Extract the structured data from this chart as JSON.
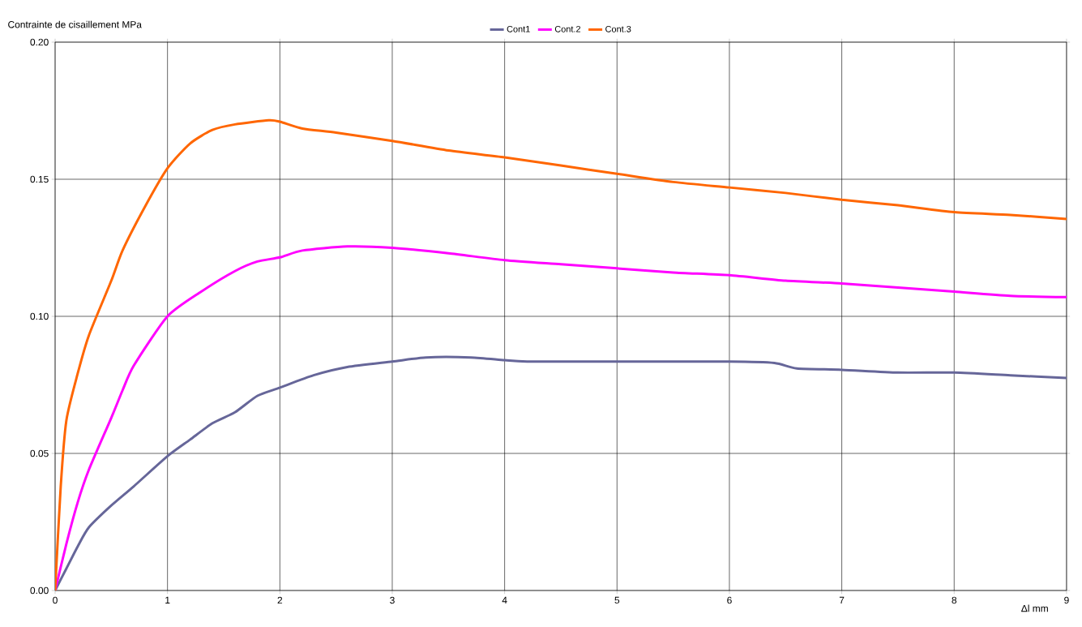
{
  "chart_data": {
    "type": "line",
    "ylabel": "Contrainte de cisaillement  MPa",
    "xlabel": "Δl  mm",
    "xlim": [
      0,
      9
    ],
    "ylim": [
      0,
      0.2
    ],
    "xticks": [
      0,
      1,
      2,
      3,
      4,
      5,
      6,
      7,
      8,
      9
    ],
    "yticks": [
      {
        "value": 0,
        "label": "0.00"
      },
      {
        "value": 0.05,
        "label": "0.05"
      },
      {
        "value": 0.1,
        "label": "0.10"
      },
      {
        "value": 0.15,
        "label": "0.15"
      },
      {
        "value": 0.2,
        "label": "0.20"
      }
    ],
    "grid": true,
    "legend": "top",
    "marker": "none",
    "line_style": "solid",
    "series": [
      {
        "name": "Cont1",
        "color": "#666699",
        "x": [
          0,
          0.1,
          0.2,
          0.3,
          0.5,
          0.7,
          1.0,
          1.2,
          1.4,
          1.6,
          1.8,
          2.0,
          2.3,
          2.6,
          3.0,
          3.3,
          3.7,
          4.0,
          4.2,
          5.0,
          6.0,
          6.4,
          6.6,
          7.0,
          7.5,
          8.0,
          8.5,
          9.0
        ],
        "values": [
          0,
          0.008,
          0.016,
          0.023,
          0.031,
          0.038,
          0.049,
          0.055,
          0.061,
          0.065,
          0.071,
          0.074,
          0.0785,
          0.0815,
          0.0835,
          0.085,
          0.085,
          0.084,
          0.0835,
          0.0835,
          0.0835,
          0.083,
          0.081,
          0.0805,
          0.0795,
          0.0795,
          0.0785,
          0.0775
        ]
      },
      {
        "name": "Cont.2",
        "color": "#ff00ff",
        "x": [
          0,
          0.1,
          0.2,
          0.3,
          0.5,
          0.6,
          0.7,
          1.0,
          1.3,
          1.6,
          1.8,
          2.0,
          2.2,
          2.6,
          3.0,
          3.5,
          4.0,
          4.5,
          5.0,
          5.5,
          6.0,
          6.5,
          7.0,
          7.5,
          8.0,
          8.5,
          9.0
        ],
        "values": [
          0,
          0.017,
          0.032,
          0.044,
          0.063,
          0.073,
          0.082,
          0.1,
          0.109,
          0.1165,
          0.12,
          0.1215,
          0.124,
          0.1255,
          0.125,
          0.123,
          0.1205,
          0.119,
          0.1175,
          0.116,
          0.115,
          0.113,
          0.112,
          0.1105,
          0.109,
          0.1075,
          0.107
        ]
      },
      {
        "name": "Cont.3",
        "color": "#ff6600",
        "x": [
          0,
          0.05,
          0.1,
          0.2,
          0.3,
          0.5,
          0.6,
          0.8,
          1.0,
          1.2,
          1.4,
          1.6,
          1.9,
          2.0,
          2.2,
          2.5,
          3.0,
          3.5,
          4.0,
          4.5,
          5.0,
          5.5,
          6.0,
          6.5,
          7.0,
          7.5,
          8.0,
          8.5,
          9.0
        ],
        "values": [
          0,
          0.038,
          0.062,
          0.079,
          0.093,
          0.113,
          0.124,
          0.14,
          0.154,
          0.163,
          0.168,
          0.17,
          0.1715,
          0.171,
          0.1685,
          0.167,
          0.164,
          0.1605,
          0.158,
          0.155,
          0.152,
          0.149,
          0.147,
          0.145,
          0.1425,
          0.1405,
          0.138,
          0.137,
          0.1355
        ]
      }
    ]
  }
}
